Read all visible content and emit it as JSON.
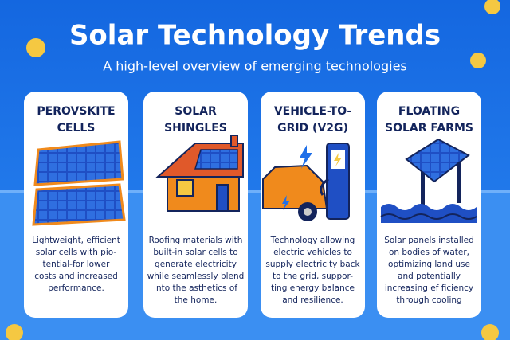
{
  "header": {
    "title": "Solar Technology Trends",
    "subtitle": "A high-level overview of emerging technologies"
  },
  "cards": [
    {
      "title": [
        "PEROVSKITE",
        "CELLS"
      ],
      "description": [
        "Lightweight, efficient",
        "solar cells with pio-",
        "tential-for lower",
        "costs and increased",
        "performance."
      ]
    },
    {
      "title": [
        "SOLAR",
        "SHINGLES"
      ],
      "description": [
        "Roofing materials with",
        "built-in solar cells to",
        "generate electricity",
        "while seamlessly blend",
        "into the asthetics of",
        "the home."
      ]
    },
    {
      "title": [
        "VEHICLE-TO-",
        "GRID (V2G)"
      ],
      "description": [
        "Technology allowing",
        "electric vehicles to",
        "supply electricity back",
        "to the grid, suppor-",
        "ting energy balance",
        "and resilience."
      ]
    },
    {
      "title": [
        "FLOATING",
        "SOLAR FARMS"
      ],
      "description": [
        "Solar panels installed",
        "on bodies of water,",
        "optimizing land use",
        "and potentially",
        "increasing ef ficiency",
        "through cooling"
      ]
    }
  ]
}
